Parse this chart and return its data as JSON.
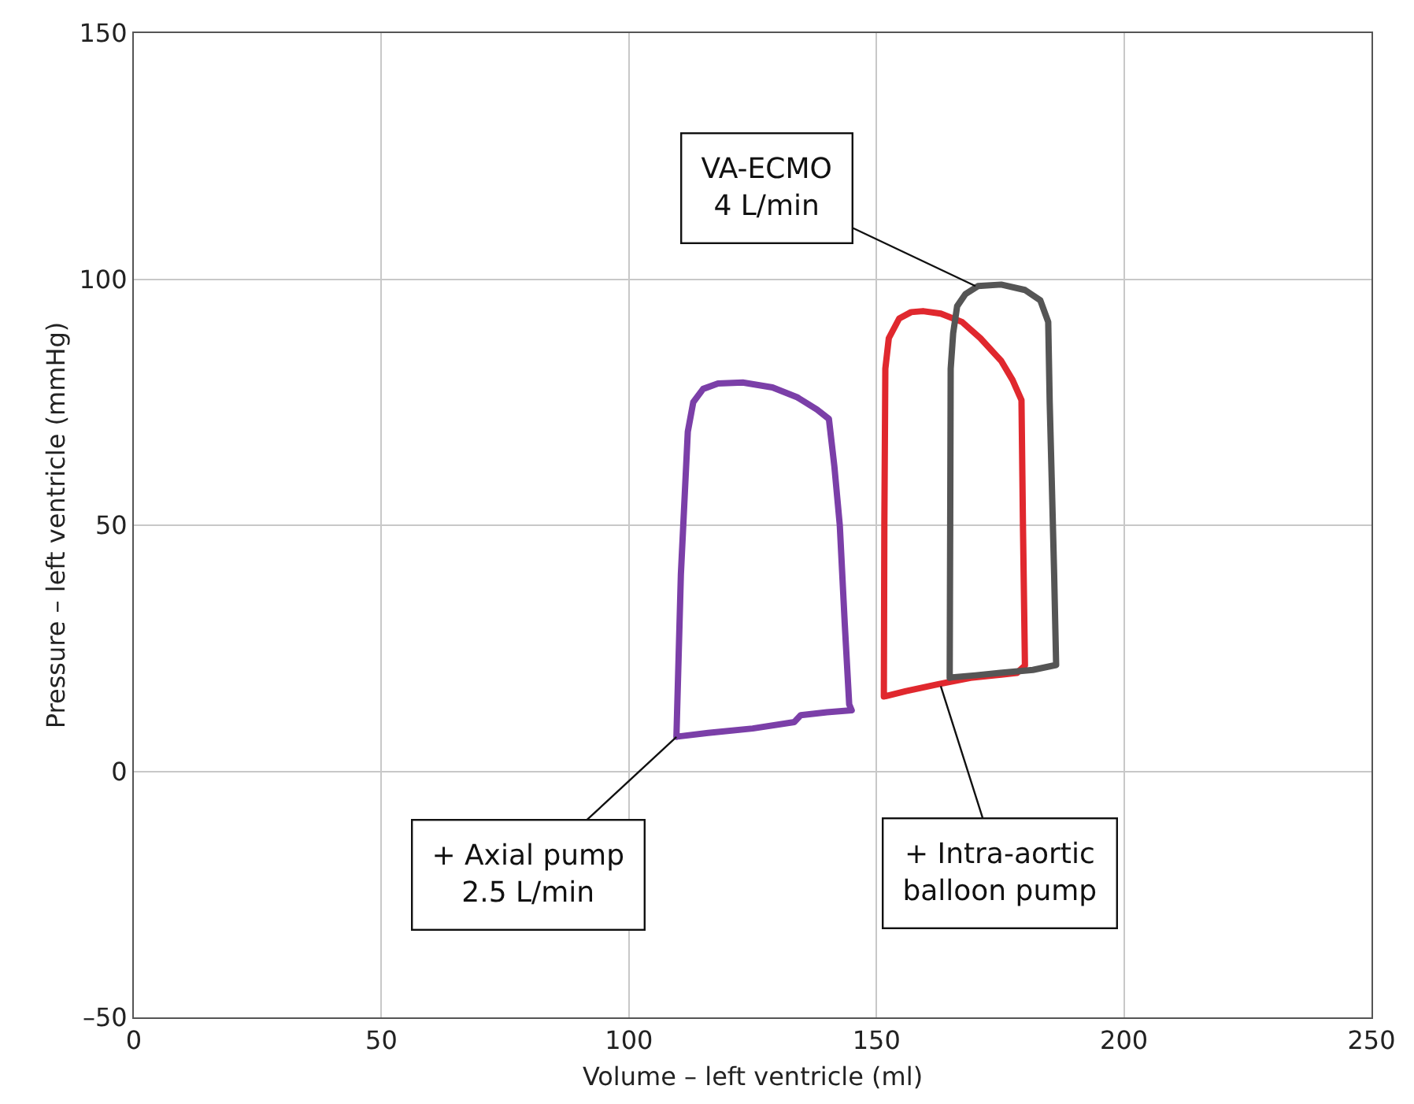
{
  "chart_data": {
    "type": "line",
    "xlabel": "Volume – left ventricle (ml)",
    "ylabel": "Pressure – left ventricle (mmHg)",
    "xlim": [
      0,
      250
    ],
    "xticks": [
      0,
      50,
      100,
      150,
      200,
      250
    ],
    "ylim": [
      -50,
      150
    ],
    "yticks": [
      {
        "value": -50,
        "label": "–50"
      },
      0,
      50,
      100,
      150
    ],
    "grid": true,
    "marker": "none",
    "line_style": "solid",
    "series": [
      {
        "color": "#7b3fa8",
        "x": [
          109.6,
          110.5,
          111.9,
          113,
          115,
          118,
          123,
          129,
          134,
          138,
          140.4,
          141.5,
          142.6,
          143.6,
          144.5,
          145,
          140,
          134.7,
          133.4,
          125,
          116,
          110.2
        ],
        "values": [
          7,
          40,
          69,
          75,
          77.7,
          78.8,
          79,
          78,
          76,
          73.5,
          71.6,
          62,
          50,
          30,
          13.6,
          12.4,
          12,
          11.4,
          10,
          8.7,
          7.8,
          7.1
        ]
      },
      {
        "color": "#e0282e",
        "x": [
          151.5,
          151.6,
          151.8,
          152.5,
          154.6,
          157,
          159.4,
          163,
          167.3,
          171,
          175.2,
          177.5,
          179.3,
          179.6,
          180,
          178.4,
          174,
          169,
          162.5,
          156,
          152
        ],
        "values": [
          15.2,
          50,
          81.8,
          88,
          92,
          93.3,
          93.5,
          93,
          91.3,
          88,
          83.4,
          79.5,
          75.4,
          50,
          21.5,
          20,
          19.5,
          19,
          17.7,
          16.3,
          15.3
        ]
      },
      {
        "color": "#555555",
        "x": [
          164.8,
          164.9,
          165,
          165.5,
          166.3,
          168,
          170.5,
          175.2,
          180,
          183.1,
          184.7,
          185,
          185.4,
          185.9,
          186.3,
          181.6,
          175,
          170,
          165.3
        ],
        "values": [
          19,
          50,
          81.8,
          89,
          94.5,
          97,
          98.6,
          98.9,
          97.8,
          95.7,
          91.3,
          75,
          59.6,
          40,
          21.6,
          20.6,
          20,
          19.5,
          19.1
        ]
      }
    ],
    "annotations": [
      {
        "text": "VA-ECMO\n4 L/min",
        "x": 170,
        "y": 98.6
      },
      {
        "text": "+ Axial pump\n2.5 L/min",
        "x": 109.6,
        "y": 7
      },
      {
        "text": "+ Intra-aortic\nballoon pump",
        "x": 163,
        "y": 17.3
      }
    ]
  }
}
